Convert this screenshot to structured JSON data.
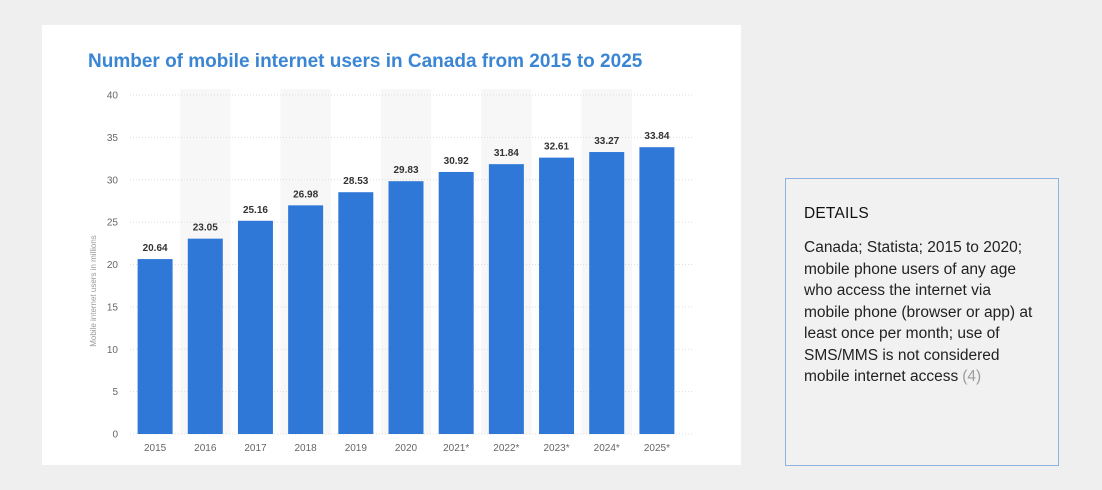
{
  "chart_data": {
    "type": "bar",
    "title": "Number of mobile internet users in Canada from 2015 to 2025",
    "xlabel": "",
    "ylabel": "Mobile internet users in millions",
    "categories": [
      "2015",
      "2016",
      "2017",
      "2018",
      "2019",
      "2020",
      "2021*",
      "2022*",
      "2023*",
      "2024*",
      "2025*"
    ],
    "values": [
      20.64,
      23.05,
      25.16,
      26.98,
      28.53,
      29.83,
      30.92,
      31.84,
      32.61,
      33.27,
      33.84
    ],
    "value_labels": [
      "20.64",
      "23.05",
      "25.16",
      "26.98",
      "28.53",
      "29.83",
      "30.92",
      "31.84",
      "32.61",
      "33.27",
      "33.84"
    ],
    "ylim": [
      0,
      40
    ],
    "yticks": [
      "0",
      "5",
      "10",
      "15",
      "20",
      "25",
      "30",
      "35",
      "40"
    ],
    "grid": true,
    "bar_color": "#2f78d8"
  },
  "details": {
    "heading": "DETAILS",
    "text": "Canada; Statista; 2015 to 2020; mobile phone users of any age who access the internet via mobile phone (browser or app) at least once per month; use of SMS/MMS is not considered mobile internet access",
    "ref": "(4)"
  }
}
